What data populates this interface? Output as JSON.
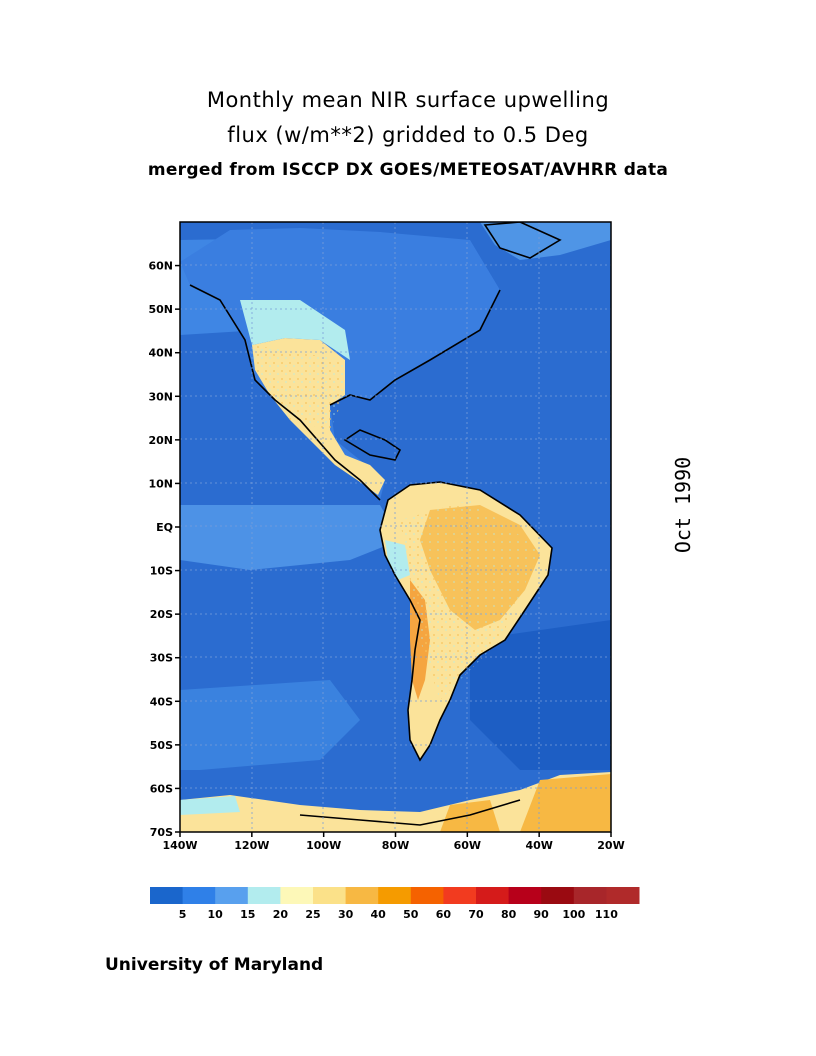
{
  "title": {
    "line1": "Monthly mean NIR surface upwelling",
    "line2": "flux (w/m**2) gridded to 0.5 Deg",
    "line3": "merged from ISCCP DX GOES/METEOSAT/AVHRR data"
  },
  "date_label": "Oct 1990",
  "credit": "University of Maryland",
  "map": {
    "lat_ticks": [
      "60N",
      "50N",
      "40N",
      "30N",
      "20N",
      "10N",
      "EQ",
      "10S",
      "20S",
      "30S",
      "40S",
      "50S",
      "60S",
      "70S"
    ],
    "lon_ticks": [
      "140W",
      "120W",
      "100W",
      "80W",
      "60W",
      "40W",
      "20W"
    ],
    "lon_range": [
      -140,
      -20
    ],
    "lat_range": [
      -70,
      70
    ],
    "ocean_color": "#2b6cd0",
    "land_color": "#fbe39a",
    "coastline_color": "#000000"
  },
  "colorbar": {
    "labels": [
      "5",
      "10",
      "15",
      "20",
      "25",
      "30",
      "40",
      "50",
      "60",
      "70",
      "80",
      "90",
      "100",
      "110"
    ],
    "colors": [
      "#1a66cc",
      "#2f80e8",
      "#58a0ee",
      "#b2ecee",
      "#fdf8b8",
      "#fbe189",
      "#f7b843",
      "#f59b00",
      "#f56200",
      "#f23b1f",
      "#d51b1a",
      "#b7001a",
      "#9a0a11",
      "#a8262a",
      "#b02a2a"
    ]
  }
}
